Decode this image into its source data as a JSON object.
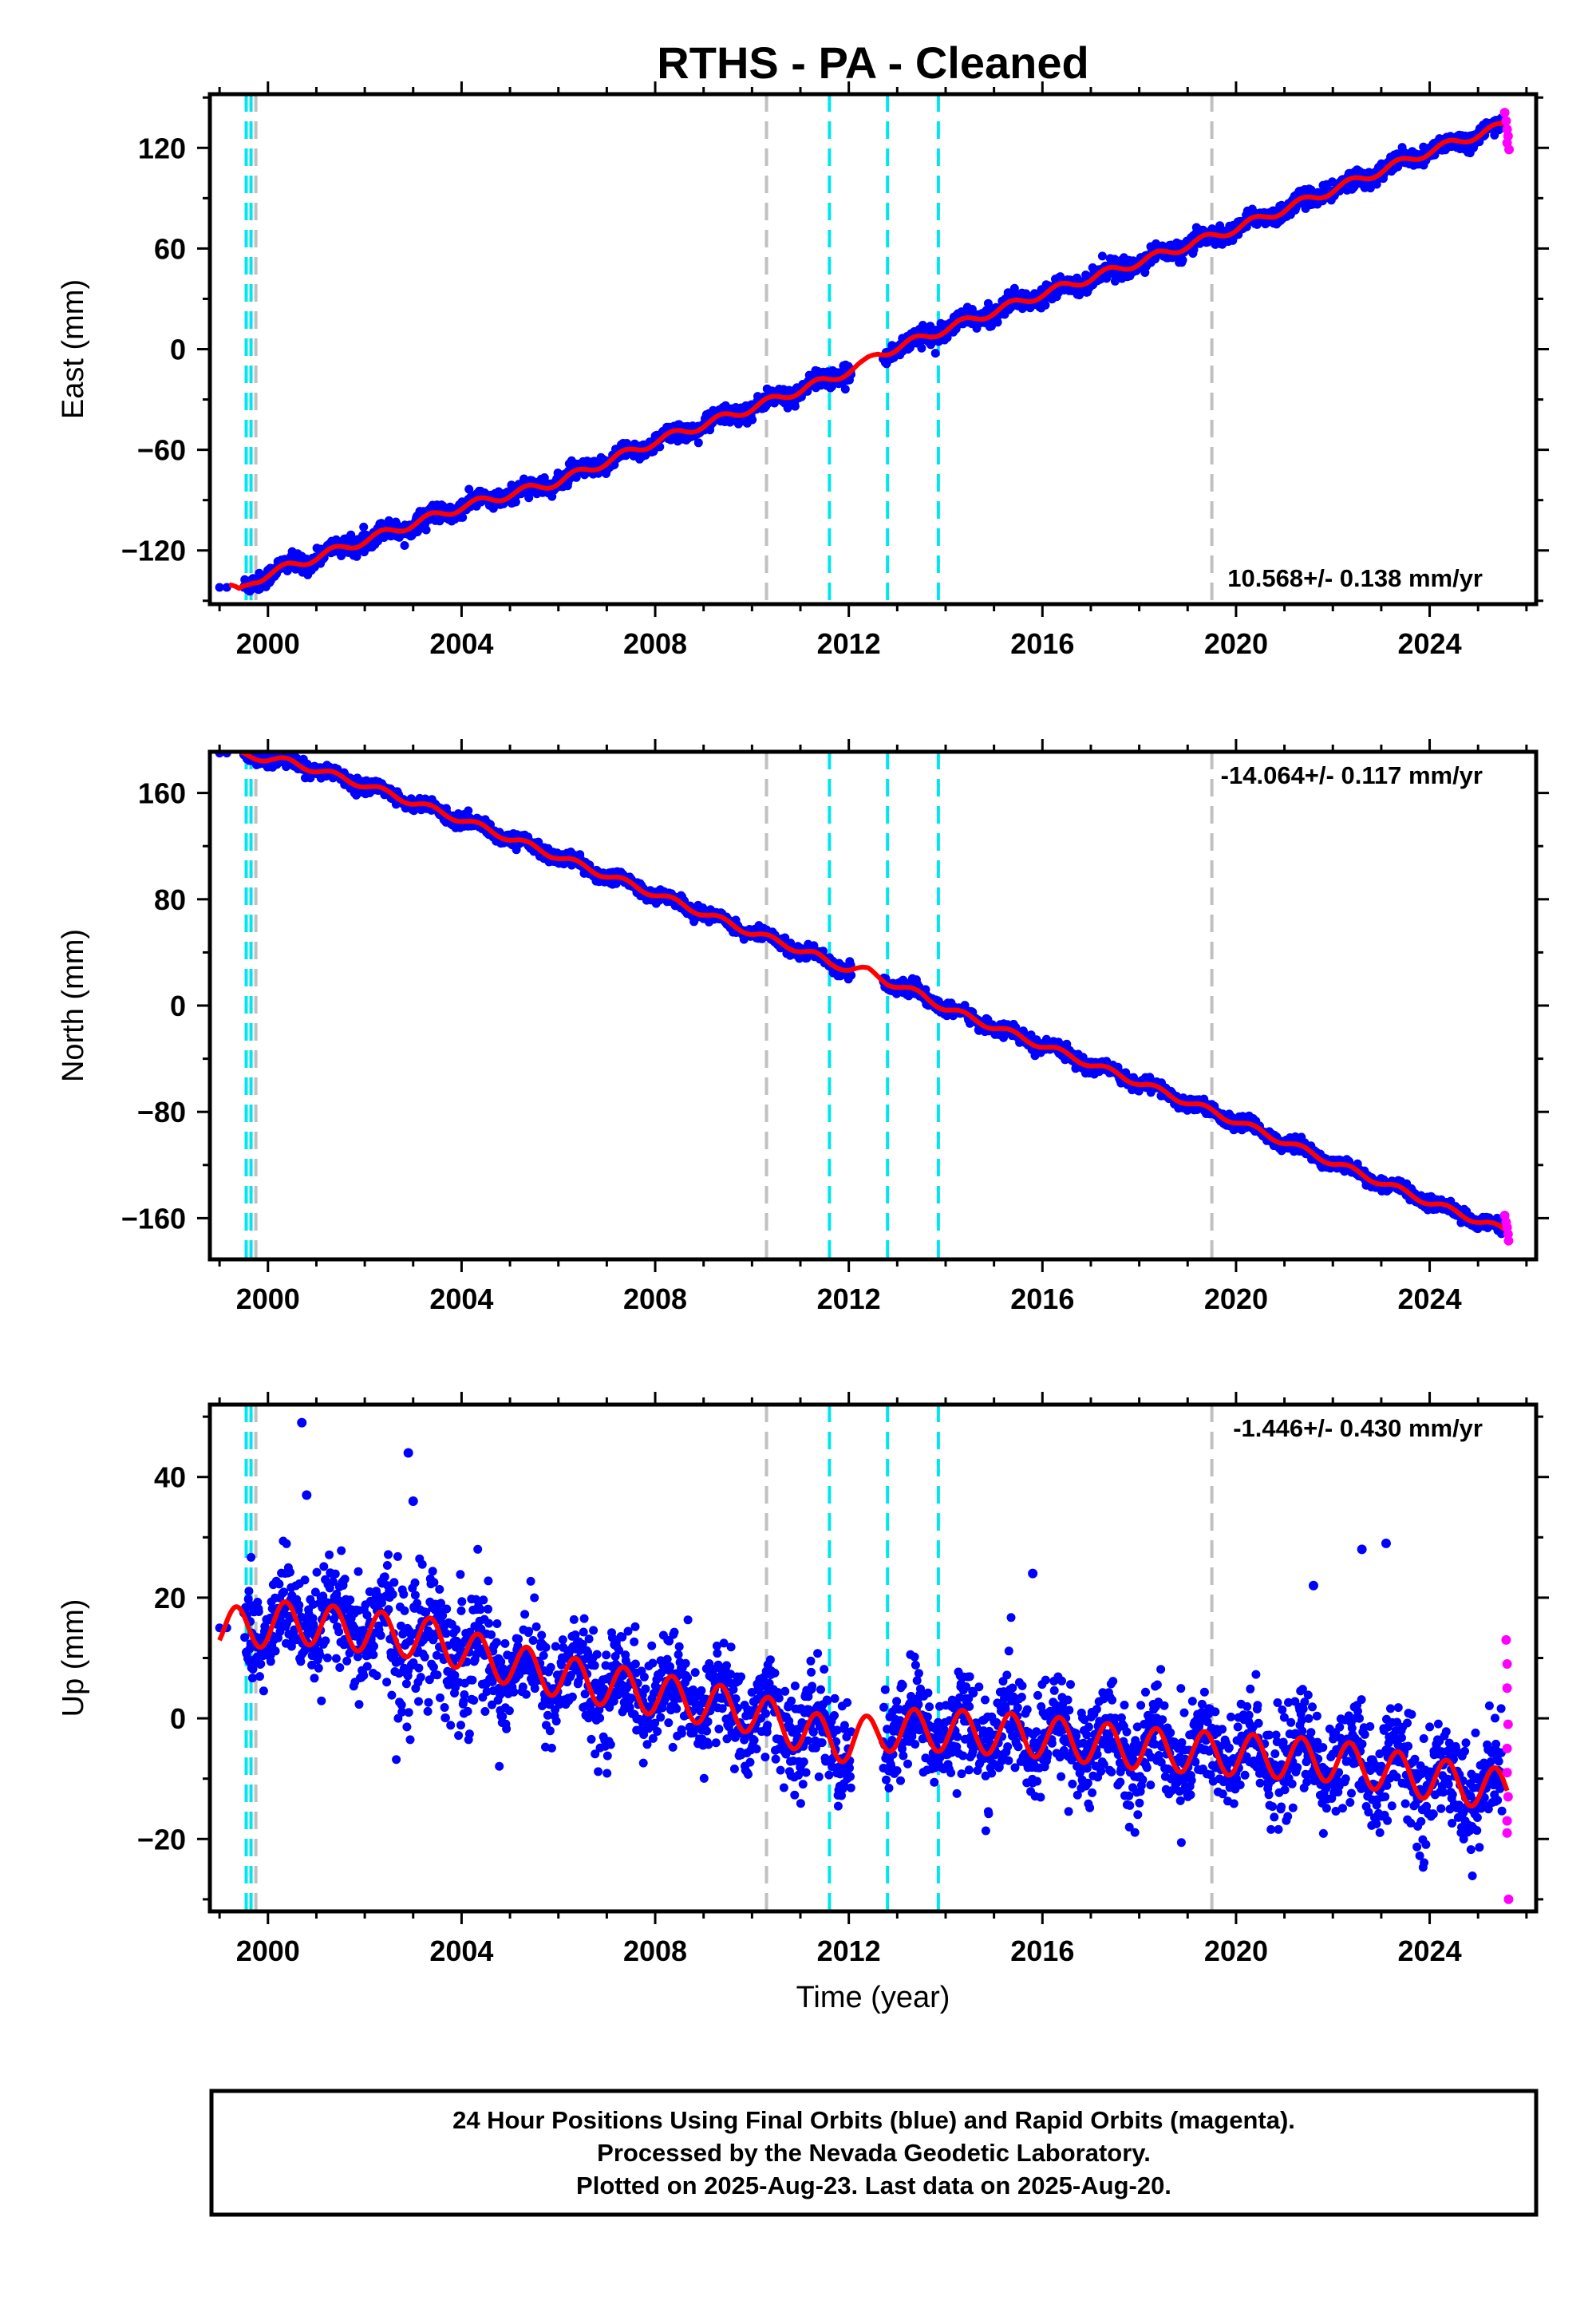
{
  "title": "RTHS  - PA - Cleaned",
  "colors": {
    "final_orbits": "#0000ff",
    "rapid_orbits": "#ff00ff",
    "model_fit": "#ff0000",
    "equipment_change": "#00e5ee",
    "other_event": "#c0c0c0"
  },
  "chart_data": [
    {
      "type": "scatter",
      "panel": "east",
      "ylabel": "East (mm)",
      "xlabel": "",
      "xlim": [
        1998.8,
        2026.2
      ],
      "ylim": [
        -152,
        152
      ],
      "xticks": [
        "2000",
        "2004",
        "2008",
        "2012",
        "2016",
        "2020",
        "2024"
      ],
      "yticks": [
        "-120",
        "-60",
        "0",
        "60",
        "120"
      ],
      "rate_label": "10.568+/- 0.138 mm/yr",
      "rate": 10.568,
      "offset_at_2012": -9,
      "seasonal_amplitude": 2.5,
      "scatter_sd": 2.6,
      "fit_points": [
        [
          1999.2,
          -142
        ],
        [
          1999.4,
          -145
        ],
        [
          1999.7,
          -138
        ],
        [
          2000.0,
          -134
        ],
        [
          2001.0,
          -124
        ],
        [
          2002.0,
          -114
        ],
        [
          2004.0,
          -94
        ],
        [
          2006.0,
          -79
        ],
        [
          2008.0,
          -55
        ],
        [
          2010.0,
          -35
        ],
        [
          2011.2,
          -22
        ],
        [
          2011.6,
          -18
        ],
        [
          2012.3,
          -9
        ],
        [
          2012.6,
          -3
        ],
        [
          2013.0,
          1
        ],
        [
          2014.0,
          12
        ],
        [
          2016.0,
          33
        ],
        [
          2018.0,
          52
        ],
        [
          2020.0,
          72
        ],
        [
          2022.0,
          95
        ],
        [
          2024.0,
          118
        ],
        [
          2025.6,
          134
        ]
      ],
      "rapid_points": [
        [
          2025.55,
          141
        ],
        [
          2025.58,
          136
        ],
        [
          2025.6,
          131
        ],
        [
          2025.62,
          127
        ],
        [
          2025.64,
          119
        ],
        [
          2025.6,
          123
        ]
      ]
    },
    {
      "type": "scatter",
      "panel": "north",
      "ylabel": "North (mm)",
      "xlabel": "",
      "xlim": [
        1998.8,
        2026.2
      ],
      "ylim": [
        -191,
        191
      ],
      "xticks": [
        "2000",
        "2004",
        "2008",
        "2012",
        "2016",
        "2020",
        "2024"
      ],
      "yticks": [
        "-160",
        "-80",
        "0",
        "80",
        "160"
      ],
      "rate_label": "-14.064+/- 0.117 mm/yr",
      "rate": -14.064,
      "offset_at_2012": 18,
      "seasonal_amplitude": 2.5,
      "scatter_sd": 2.4,
      "fit_points": [
        [
          1999.2,
          190
        ],
        [
          1999.8,
          187
        ],
        [
          2000.5,
          183
        ],
        [
          2002.0,
          166
        ],
        [
          2004.0,
          140
        ],
        [
          2006.0,
          112
        ],
        [
          2008.0,
          84
        ],
        [
          2010.0,
          55
        ],
        [
          2011.3,
          38
        ],
        [
          2011.6,
          32
        ],
        [
          2012.0,
          28
        ],
        [
          2012.4,
          26
        ],
        [
          2012.8,
          18
        ],
        [
          2013.5,
          8
        ],
        [
          2014.0,
          -2
        ],
        [
          2016.0,
          -30
        ],
        [
          2018.0,
          -58
        ],
        [
          2020.0,
          -87
        ],
        [
          2022.0,
          -118
        ],
        [
          2024.0,
          -148
        ],
        [
          2025.6,
          -170
        ]
      ],
      "rapid_points": [
        [
          2025.55,
          -158
        ],
        [
          2025.58,
          -163
        ],
        [
          2025.6,
          -167
        ],
        [
          2025.62,
          -172
        ],
        [
          2025.63,
          -177
        ]
      ]
    },
    {
      "type": "scatter",
      "panel": "up",
      "ylabel": "Up (mm)",
      "xlabel": "Time (year)",
      "xlim": [
        1998.8,
        2026.2
      ],
      "ylim": [
        -32,
        52
      ],
      "xticks": [
        "2000",
        "2004",
        "2008",
        "2012",
        "2016",
        "2020",
        "2024"
      ],
      "yticks": [
        "-20",
        "0",
        "20",
        "40"
      ],
      "rate_label": "-1.446+/- 0.430 mm/yr",
      "rate": -1.446,
      "seasonal_amplitude": 3.5,
      "scatter_sd": 4.2,
      "fit_points": [
        [
          1999.0,
          15
        ],
        [
          1999.6,
          15
        ],
        [
          2000.5,
          16
        ],
        [
          2001.5,
          15
        ],
        [
          2002.5,
          14
        ],
        [
          2003.5,
          13
        ],
        [
          2004.5,
          10
        ],
        [
          2006.0,
          7
        ],
        [
          2008.0,
          4
        ],
        [
          2010.0,
          1
        ],
        [
          2011.0,
          -2
        ],
        [
          2012.0,
          -4
        ],
        [
          2012.8,
          -2
        ],
        [
          2014.0,
          -2
        ],
        [
          2016.0,
          -3
        ],
        [
          2018.0,
          -5
        ],
        [
          2020.0,
          -6
        ],
        [
          2022.0,
          -7
        ],
        [
          2024.0,
          -10
        ],
        [
          2025.6,
          -12
        ]
      ],
      "outliers": [
        [
          2000.7,
          49
        ],
        [
          2002.9,
          44
        ],
        [
          2022.6,
          28
        ],
        [
          2023.1,
          29
        ],
        [
          2000.8,
          37
        ],
        [
          2003.0,
          36
        ],
        [
          2015.8,
          24
        ],
        [
          2021.6,
          22
        ]
      ],
      "rapid_points": [
        [
          2025.58,
          13
        ],
        [
          2025.6,
          9
        ],
        [
          2025.6,
          5
        ],
        [
          2025.62,
          -1
        ],
        [
          2025.6,
          -5
        ],
        [
          2025.6,
          -9
        ],
        [
          2025.62,
          -13
        ],
        [
          2025.6,
          -17
        ],
        [
          2025.6,
          -19
        ],
        [
          2025.63,
          -30
        ]
      ]
    }
  ],
  "events": {
    "equipment_change": [
      1999.55,
      1999.65,
      2011.6,
      2012.8,
      2013.85
    ],
    "other": [
      1999.75,
      2010.3,
      2019.5
    ]
  },
  "footer": {
    "line1": "24 Hour Positions Using Final Orbits (blue) and Rapid Orbits (magenta).",
    "line2": "Processed by the Nevada Geodetic Laboratory.",
    "line3": "Plotted on 2025-Aug-23. Last data on 2025-Aug-20."
  }
}
